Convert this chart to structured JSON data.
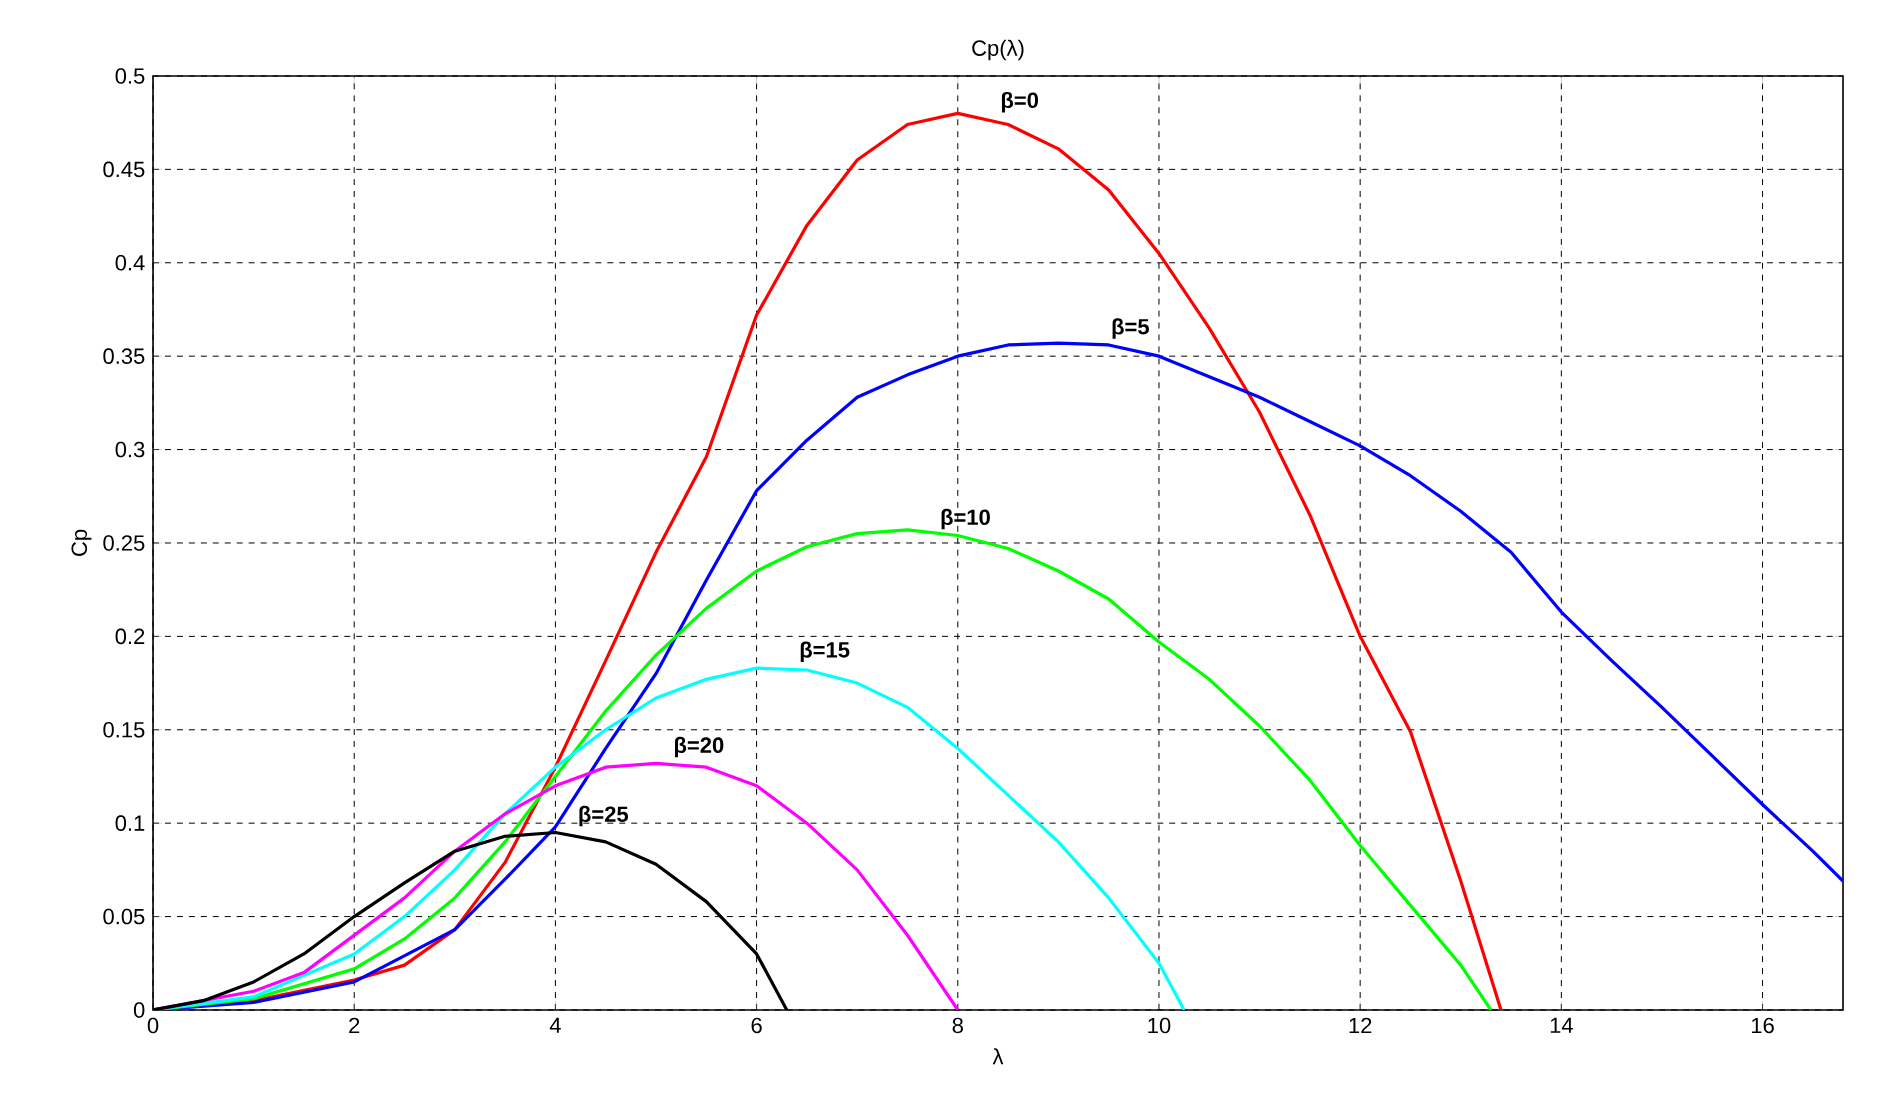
{
  "chart_data": {
    "type": "line",
    "title": "Cp(λ)",
    "xlabel": "λ",
    "ylabel": "Cp",
    "xlim": [
      0,
      16.8
    ],
    "ylim": [
      0,
      0.5
    ],
    "xticks": [
      0,
      2,
      4,
      6,
      8,
      10,
      12,
      14,
      16
    ],
    "yticks": [
      0,
      0.05,
      0.1,
      0.15,
      0.2,
      0.25,
      0.3,
      0.35,
      0.4,
      0.45,
      0.5
    ],
    "grid": true,
    "marker": "none",
    "line_style": "solid",
    "series": [
      {
        "color": "#ff0000",
        "x": [
          0,
          1,
          2,
          2.5,
          3,
          3.5,
          4,
          4.5,
          5,
          5.5,
          6,
          6.5,
          7,
          7.5,
          8,
          8.5,
          9,
          9.5,
          10,
          10.5,
          11,
          11.5,
          12,
          12.5,
          13,
          13.4
        ],
        "values": [
          0,
          0.005,
          0.016,
          0.024,
          0.043,
          0.079,
          0.13,
          0.187,
          0.245,
          0.296,
          0.372,
          0.42,
          0.455,
          0.474,
          0.48,
          0.474,
          0.461,
          0.439,
          0.405,
          0.365,
          0.32,
          0.265,
          0.2,
          0.149,
          0.069,
          0
        ]
      },
      {
        "color": "#0000ff",
        "x": [
          0,
          1,
          2,
          3,
          3.5,
          4,
          4.5,
          5,
          5.5,
          6,
          6.5,
          7,
          7.5,
          8,
          8.5,
          9,
          9.5,
          10,
          10.5,
          11,
          11.5,
          12,
          12.5,
          13,
          13.5,
          14,
          14.5,
          15,
          15.5,
          16,
          16.5,
          16.8
        ],
        "values": [
          0,
          0.004,
          0.015,
          0.043,
          0.07,
          0.098,
          0.14,
          0.18,
          0.23,
          0.278,
          0.305,
          0.328,
          0.34,
          0.35,
          0.356,
          0.357,
          0.356,
          0.35,
          0.339,
          0.328,
          0.315,
          0.302,
          0.286,
          0.267,
          0.245,
          0.213,
          0.187,
          0.162,
          0.136,
          0.11,
          0.085,
          0.069
        ]
      },
      {
        "color": "#00ff00",
        "x": [
          0,
          1,
          2,
          2.5,
          3,
          3.5,
          4,
          4.5,
          5,
          5.5,
          6,
          6.5,
          7,
          7.5,
          8,
          8.5,
          9,
          9.5,
          10,
          10.5,
          11,
          11.5,
          12,
          12.5,
          13,
          13.3
        ],
        "values": [
          0,
          0.006,
          0.022,
          0.038,
          0.06,
          0.09,
          0.125,
          0.16,
          0.19,
          0.215,
          0.235,
          0.248,
          0.255,
          0.257,
          0.254,
          0.247,
          0.235,
          0.22,
          0.197,
          0.177,
          0.152,
          0.123,
          0.088,
          0.056,
          0.024,
          0
        ]
      },
      {
        "color": "#00ffff",
        "x": [
          0,
          1,
          2,
          2.5,
          3,
          3.5,
          4,
          4.5,
          5,
          5.5,
          6,
          6.5,
          7,
          7.5,
          8,
          8.5,
          9,
          9.5,
          10,
          10.25
        ],
        "values": [
          0,
          0.007,
          0.03,
          0.05,
          0.075,
          0.105,
          0.13,
          0.15,
          0.167,
          0.177,
          0.183,
          0.182,
          0.175,
          0.162,
          0.14,
          0.115,
          0.09,
          0.06,
          0.025,
          0
        ]
      },
      {
        "color": "#ff00ff",
        "x": [
          0,
          1,
          1.5,
          2,
          2.5,
          3,
          3.5,
          4,
          4.5,
          5,
          5.5,
          6,
          6.5,
          7,
          7.5,
          8
        ],
        "values": [
          0,
          0.01,
          0.02,
          0.04,
          0.06,
          0.085,
          0.105,
          0.12,
          0.13,
          0.132,
          0.13,
          0.12,
          0.1,
          0.075,
          0.04,
          0
        ]
      },
      {
        "color": "#000000",
        "x": [
          0,
          0.5,
          1,
          1.5,
          2,
          2.5,
          3,
          3.5,
          4,
          4.5,
          5,
          5.5,
          6,
          6.3
        ],
        "values": [
          0,
          0.005,
          0.015,
          0.03,
          0.05,
          0.068,
          0.085,
          0.093,
          0.095,
          0.09,
          0.078,
          0.058,
          0.03,
          0
        ]
      }
    ],
    "annotations": [
      {
        "text": "β=0",
        "x": 8.4,
        "y": 0.476
      },
      {
        "text": "β=5",
        "x": 9.5,
        "y": 0.358
      },
      {
        "text": "β=10",
        "x": 7.8,
        "y": 0.256
      },
      {
        "text": "β=15",
        "x": 6.4,
        "y": 0.185
      },
      {
        "text": "β=20",
        "x": 5.15,
        "y": 0.134
      },
      {
        "text": "β=25",
        "x": 4.2,
        "y": 0.097
      }
    ]
  }
}
